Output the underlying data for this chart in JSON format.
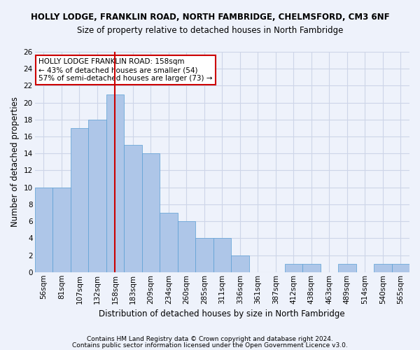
{
  "title": "HOLLY LODGE, FRANKLIN ROAD, NORTH FAMBRIDGE, CHELMSFORD, CM3 6NF",
  "subtitle": "Size of property relative to detached houses in North Fambridge",
  "xlabel": "Distribution of detached houses by size in North Fambridge",
  "ylabel": "Number of detached properties",
  "categories": [
    "56sqm",
    "81sqm",
    "107sqm",
    "132sqm",
    "158sqm",
    "183sqm",
    "209sqm",
    "234sqm",
    "260sqm",
    "285sqm",
    "311sqm",
    "336sqm",
    "361sqm",
    "387sqm",
    "412sqm",
    "438sqm",
    "463sqm",
    "489sqm",
    "514sqm",
    "540sqm",
    "565sqm"
  ],
  "values": [
    10,
    10,
    17,
    18,
    21,
    15,
    14,
    7,
    6,
    4,
    4,
    2,
    0,
    0,
    1,
    1,
    0,
    1,
    0,
    1,
    1
  ],
  "bar_color": "#aec6e8",
  "bar_edgecolor": "#5a9fd4",
  "vline_x_index": 4,
  "vline_color": "#cc0000",
  "annotation_line1": "HOLLY LODGE FRANKLIN ROAD: 158sqm",
  "annotation_line2": "← 43% of detached houses are smaller (54)",
  "annotation_line3": "57% of semi-detached houses are larger (73) →",
  "annotation_box_color": "#ffffff",
  "annotation_box_edgecolor": "#cc0000",
  "ylim": [
    0,
    26
  ],
  "yticks": [
    0,
    2,
    4,
    6,
    8,
    10,
    12,
    14,
    16,
    18,
    20,
    22,
    24,
    26
  ],
  "grid_color": "#cdd5e8",
  "background_color": "#eef2fb",
  "footer1": "Contains HM Land Registry data © Crown copyright and database right 2024.",
  "footer2": "Contains public sector information licensed under the Open Government Licence v3.0.",
  "title_fontsize": 8.5,
  "subtitle_fontsize": 8.5,
  "ylabel_fontsize": 8.5,
  "xlabel_fontsize": 8.5,
  "tick_fontsize": 7.5,
  "footer_fontsize": 6.5,
  "annot_fontsize": 7.5
}
